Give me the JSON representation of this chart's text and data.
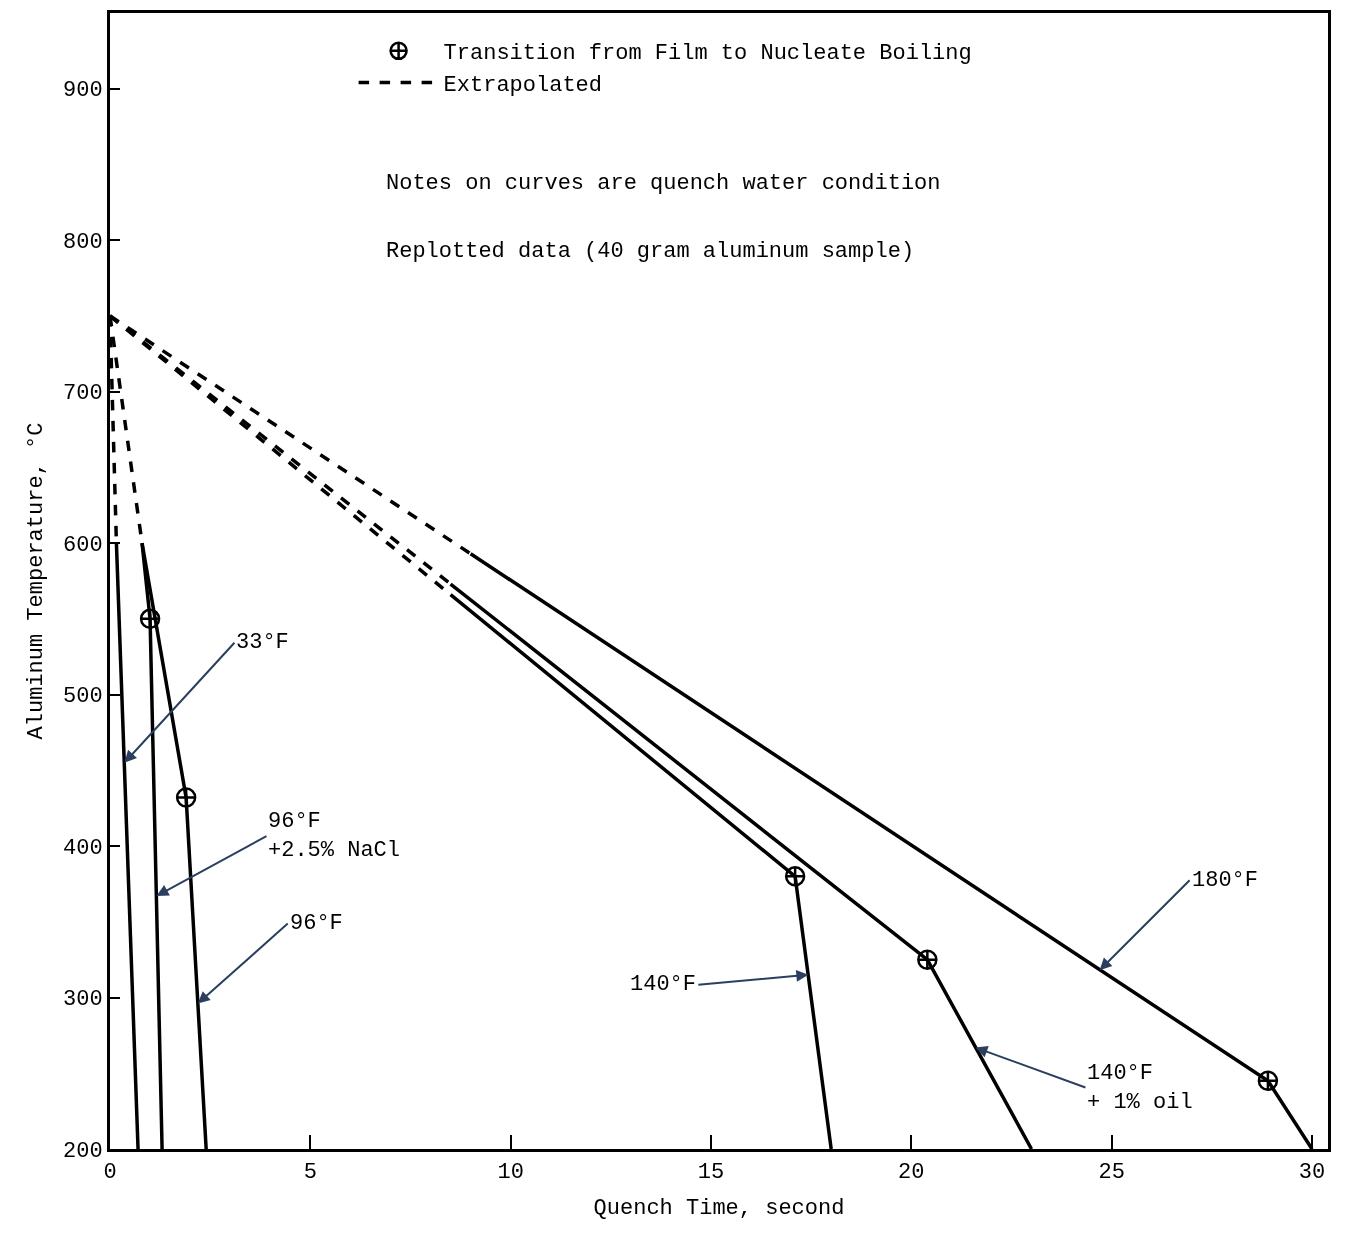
{
  "chart_data": {
    "type": "line",
    "xlabel": "Quench Time, second",
    "ylabel": "Aluminum Temperature, °C",
    "xlim": [
      0,
      30.4
    ],
    "ylim": [
      200,
      950
    ],
    "xticks": [
      0,
      5,
      10,
      15,
      20,
      25,
      30
    ],
    "yticks": [
      200,
      300,
      400,
      500,
      600,
      700,
      800,
      900
    ],
    "grid": false,
    "legend": "top",
    "marker": "none",
    "line_style": "solid",
    "series": [
      {
        "color": "#000000",
        "x": [
          0.16,
          0.7
        ],
        "values": [
          600,
          200
        ]
      },
      {
        "color": "#000000",
        "x": [
          0.8,
          1.0,
          1.3
        ],
        "values": [
          600,
          550,
          200
        ]
      },
      {
        "color": "#000000",
        "x": [
          0.8,
          1.9,
          2.4
        ],
        "values": [
          600,
          432,
          200
        ]
      },
      {
        "color": "#000000",
        "x": [
          8.5,
          17.1,
          18.0
        ],
        "values": [
          566,
          380,
          200
        ]
      },
      {
        "color": "#000000",
        "x": [
          8.5,
          20.4,
          23.0
        ],
        "values": [
          573,
          325,
          200
        ]
      },
      {
        "color": "#000000",
        "x": [
          9.0,
          28.9,
          30.0
        ],
        "values": [
          593,
          245,
          200
        ]
      },
      {
        "name": "Extrapolated",
        "color": "#000000",
        "line_style": "dashed",
        "x": [
          0,
          9.0
        ],
        "values": [
          750,
          593
        ]
      },
      {
        "color": "#000000",
        "line_style": "dashed",
        "x": [
          0,
          8.5
        ],
        "values": [
          750,
          573
        ]
      },
      {
        "color": "#000000",
        "line_style": "dashed",
        "x": [
          0,
          8.5
        ],
        "values": [
          750,
          566
        ]
      },
      {
        "color": "#000000",
        "line_style": "dashed",
        "x": [
          0,
          0.8
        ],
        "values": [
          750,
          600
        ]
      },
      {
        "color": "#000000",
        "line_style": "dashed",
        "x": [
          0,
          0.16
        ],
        "values": [
          750,
          600
        ]
      },
      {
        "name": "Transition from Film to Nucleate Boiling",
        "type": "scatter",
        "marker": "cross",
        "color": "#000000",
        "x": [
          1.0,
          1.9,
          17.1,
          20.4,
          28.9
        ],
        "values": [
          550,
          432,
          380,
          325,
          245
        ]
      }
    ],
    "annotations": [
      "Notes on curves are quench water condition",
      "Replotted data (40 gram aluminum sample)",
      {
        "text": "33°F",
        "x": 0.36,
        "y": 455
      },
      {
        "text": "96°F\n+2.5% NaCl",
        "x": 1.16,
        "y": 367
      },
      {
        "text": "96°F",
        "x": 2.19,
        "y": 296
      },
      {
        "text": "140°F",
        "x": 17.43,
        "y": 315
      },
      {
        "text": "140°F\n+ 1% oil",
        "x": 21.6,
        "y": 267
      },
      {
        "text": "180°F",
        "x": 24.7,
        "y": 318
      }
    ]
  }
}
